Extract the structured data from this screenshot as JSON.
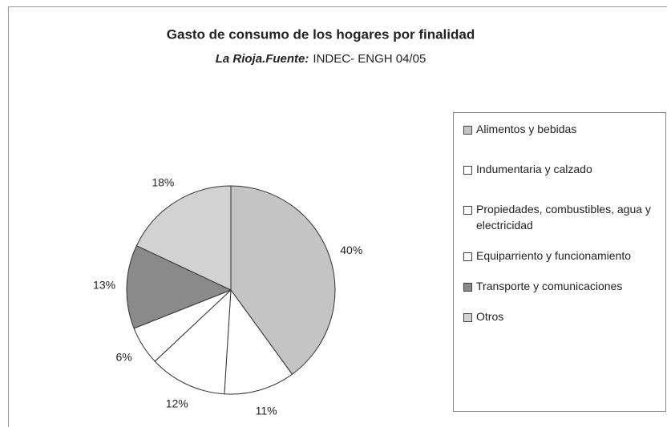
{
  "chart_data": {
    "type": "pie",
    "title": "Gasto de consumo de los hogares por finalidad",
    "subtitle": [
      "La Rioja.Fuente:",
      "INDEC- ENGH 04/05"
    ],
    "categories": [
      "Alimentos y bebidas",
      "Indumentaria y calzado",
      "Propiedades, combustibles, agua y electricidad",
      "Equiparriento y funcionamiento",
      "Transporte y comunicaciones",
      "Otros"
    ],
    "values": [
      40,
      11,
      12,
      6,
      13,
      18
    ],
    "value_labels": [
      "40%",
      "11%",
      "12%",
      "6%",
      "13%",
      "18%"
    ],
    "colors": [
      "#c4c4c4",
      "#ffffff",
      "#ffffff",
      "#ffffff",
      "#8a8a8a",
      "#d2d2d2"
    ],
    "legend": "right"
  }
}
